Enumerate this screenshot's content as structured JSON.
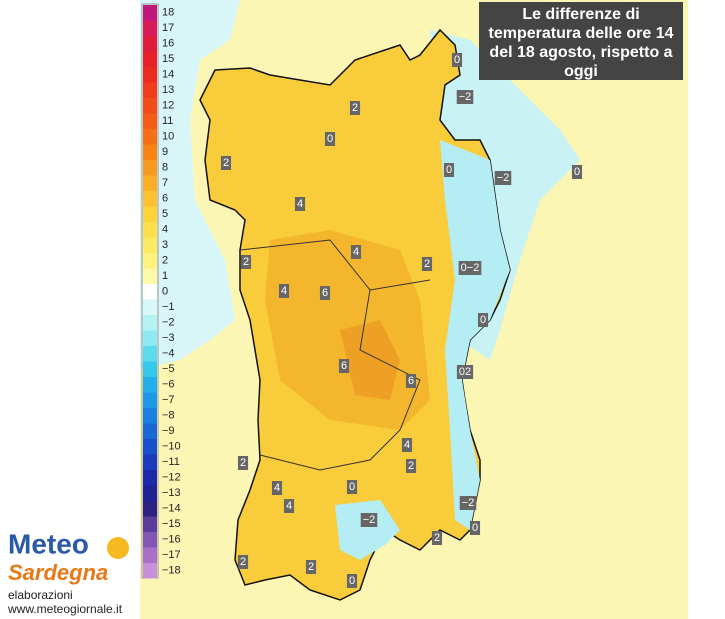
{
  "title": [
    "Le differenze di",
    "temperatura delle ore 14",
    "del 18 agosto, rispetto a",
    "oggi"
  ],
  "legend": {
    "labels": [
      "18",
      "17",
      "16",
      "15",
      "14",
      "13",
      "12",
      "11",
      "10",
      "9",
      "8",
      "7",
      "6",
      "5",
      "4",
      "3",
      "2",
      "1",
      "0",
      "−1",
      "−2",
      "−3",
      "−4",
      "−5",
      "−6",
      "−7",
      "−8",
      "−9",
      "−10",
      "−11",
      "−12",
      "−13",
      "−14",
      "−15",
      "−16",
      "−17",
      "−18"
    ],
    "colors": [
      "#c0187a",
      "#d81a5a",
      "#e01c3c",
      "#e8202a",
      "#ec2c20",
      "#f03c1c",
      "#f24c1a",
      "#f45c18",
      "#f66e16",
      "#f88414",
      "#f99a20",
      "#fbae26",
      "#fcc030",
      "#fdd23a",
      "#fede4a",
      "#feea62",
      "#fff27e",
      "#fffaa8",
      "#ffffff",
      "#d8f8f8",
      "#b4f2f4",
      "#8ceaf0",
      "#5cdcec",
      "#34c8ec",
      "#22b0ea",
      "#1c98e6",
      "#1a80e0",
      "#1a68d6",
      "#1a50cc",
      "#1a3cbc",
      "#1a2aa8",
      "#202294",
      "#2c2080",
      "#5a3c9c",
      "#8456b4",
      "#a870c8",
      "#c890dc"
    ]
  },
  "map_labels": [
    "2",
    "0",
    "2",
    "4",
    "0",
    "−2",
    "0",
    "−2",
    "0",
    "4",
    "2",
    "2",
    "0−2",
    "4",
    "6",
    "0",
    "6",
    "02",
    "6",
    "4",
    "2",
    "2",
    "0",
    "4",
    "4",
    "−2",
    "−2",
    "0",
    "2",
    "2",
    "2",
    "0"
  ],
  "logo": {
    "line1": "Meteo",
    "line2": "Sardegna"
  },
  "credit": [
    "elaborazioni",
    "www.meteogiornale.it"
  ]
}
